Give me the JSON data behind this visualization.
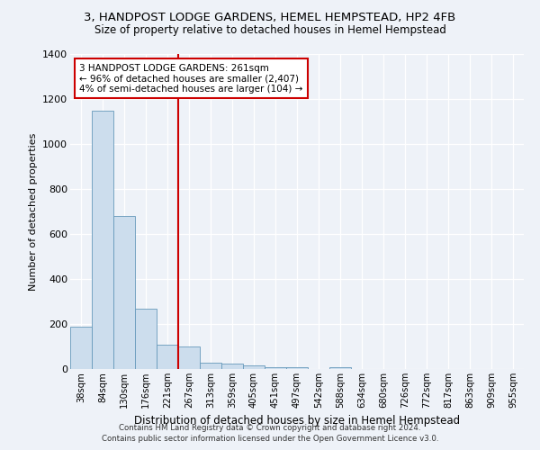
{
  "title_line1": "3, HANDPOST LODGE GARDENS, HEMEL HEMPSTEAD, HP2 4FB",
  "title_line2": "Size of property relative to detached houses in Hemel Hempstead",
  "xlabel": "Distribution of detached houses by size in Hemel Hempstead",
  "ylabel": "Number of detached properties",
  "footer_line1": "Contains HM Land Registry data © Crown copyright and database right 2024.",
  "footer_line2": "Contains public sector information licensed under the Open Government Licence v3.0.",
  "annotation_line1": "3 HANDPOST LODGE GARDENS: 261sqm",
  "annotation_line2": "← 96% of detached houses are smaller (2,407)",
  "annotation_line3": "4% of semi-detached houses are larger (104) →",
  "bar_categories": [
    "38sqm",
    "84sqm",
    "130sqm",
    "176sqm",
    "221sqm",
    "267sqm",
    "313sqm",
    "359sqm",
    "405sqm",
    "451sqm",
    "497sqm",
    "542sqm",
    "588sqm",
    "634sqm",
    "680sqm",
    "726sqm",
    "772sqm",
    "817sqm",
    "863sqm",
    "909sqm",
    "955sqm"
  ],
  "bar_values": [
    190,
    1150,
    680,
    270,
    110,
    100,
    30,
    25,
    18,
    8,
    8,
    0,
    8,
    0,
    0,
    0,
    0,
    0,
    0,
    0,
    0
  ],
  "bar_color": "#ccdded",
  "bar_edge_color": "#6699bb",
  "vline_color": "#cc0000",
  "vline_bin": 5,
  "annotation_box_color": "#cc0000",
  "background_color": "#eef2f8",
  "grid_color": "#ffffff",
  "ylim": [
    0,
    1400
  ],
  "yticks": [
    0,
    200,
    400,
    600,
    800,
    1000,
    1200,
    1400
  ]
}
